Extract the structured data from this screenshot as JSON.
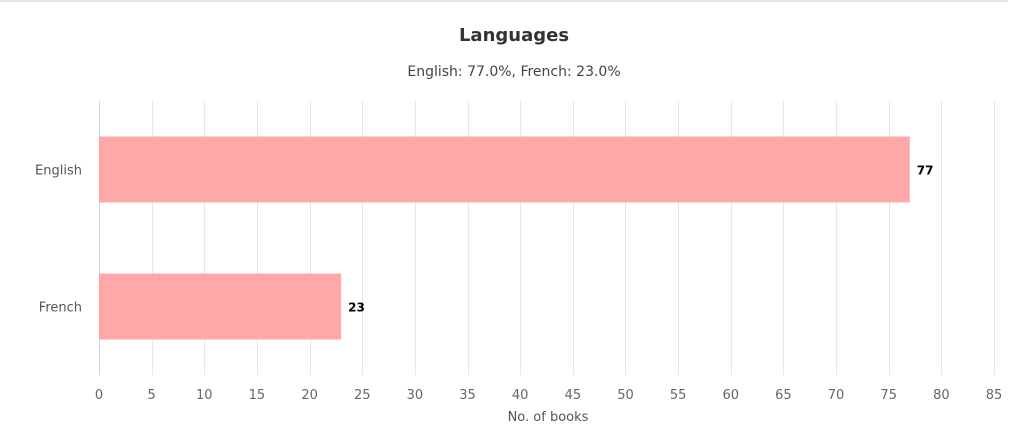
{
  "chart_data": {
    "type": "bar",
    "orientation": "horizontal",
    "title": "Languages",
    "subtitle": "English: 77.0%, French: 23.0%",
    "categories": [
      "English",
      "French"
    ],
    "values": [
      77,
      23
    ],
    "data_labels": [
      "77",
      "23"
    ],
    "xlabel": "No. of books",
    "ylabel": "",
    "xlim": [
      0,
      85
    ],
    "xticks": [
      0,
      5,
      10,
      15,
      20,
      25,
      30,
      35,
      40,
      45,
      50,
      55,
      60,
      65,
      70,
      75,
      80,
      85
    ],
    "grid": true,
    "legend": "none",
    "colors": {
      "bar": "#ffa8a8",
      "grid": "#e6e6ee",
      "axis": "#ccd6eb"
    }
  }
}
